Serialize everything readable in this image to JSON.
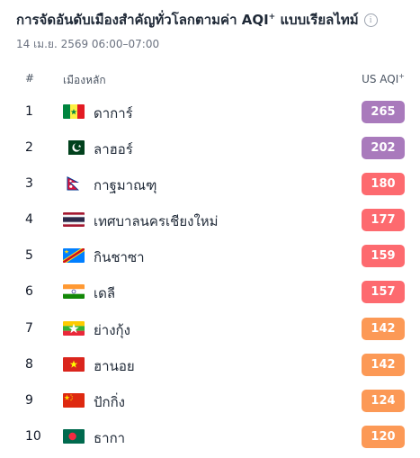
{
  "title": "การจัดอันดับเมืองสำคัญทั่วโลกตามค่า AQI",
  "title_sup": "+",
  "title_suffix": " แบบเรียลไทม์",
  "subtitle": "14 เม.ย. 2569 06:00–07:00",
  "columns": {
    "rank": "#",
    "city": "เมืองหลัก",
    "aqi": "US AQI",
    "aqi_sup": "+"
  },
  "colors": {
    "purple": "#a97abc",
    "red": "#fd6a6f",
    "orange": "#fc9956"
  },
  "rows": [
    {
      "rank": "1",
      "flag": "senegal-flag",
      "city": "ดาการ์",
      "aqi": "265",
      "level": "purple"
    },
    {
      "rank": "2",
      "flag": "pakistan-flag",
      "city": "ลาฮอร์",
      "aqi": "202",
      "level": "purple"
    },
    {
      "rank": "3",
      "flag": "nepal-flag",
      "city": "กาฐมาณฑุ",
      "aqi": "180",
      "level": "red"
    },
    {
      "rank": "4",
      "flag": "thailand-flag",
      "city": "เทศบาลนครเชียงใหม่",
      "aqi": "177",
      "level": "red"
    },
    {
      "rank": "5",
      "flag": "dr-congo-flag",
      "city": "กินชาซา",
      "aqi": "159",
      "level": "red"
    },
    {
      "rank": "6",
      "flag": "india-flag",
      "city": "เดลี",
      "aqi": "157",
      "level": "red"
    },
    {
      "rank": "7",
      "flag": "myanmar-flag",
      "city": "ย่างกุ้ง",
      "aqi": "142",
      "level": "orange"
    },
    {
      "rank": "8",
      "flag": "vietnam-flag",
      "city": "ฮานอย",
      "aqi": "142",
      "level": "orange"
    },
    {
      "rank": "9",
      "flag": "china-flag",
      "city": "ปักกิ่ง",
      "aqi": "124",
      "level": "orange"
    },
    {
      "rank": "10",
      "flag": "bangladesh-flag",
      "city": "ธากา",
      "aqi": "120",
      "level": "orange"
    }
  ]
}
